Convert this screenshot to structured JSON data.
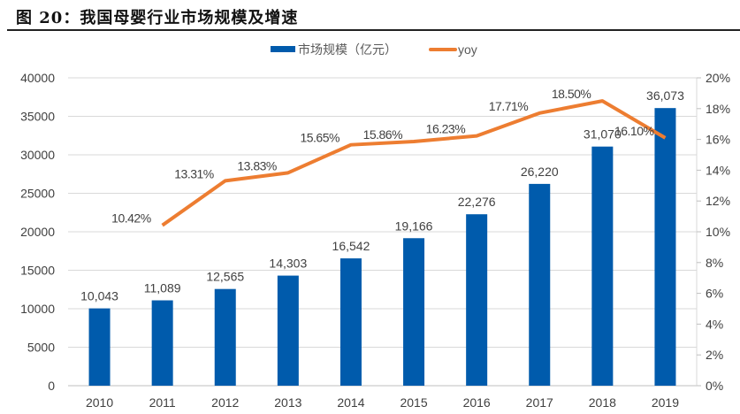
{
  "header": {
    "title": "图 20：我国母婴行业市场规模及增速"
  },
  "chart_data": {
    "type": "bar+line",
    "title": "",
    "categories": [
      "2010",
      "2011",
      "2012",
      "2013",
      "2014",
      "2015",
      "2016",
      "2017",
      "2018",
      "2019"
    ],
    "series": [
      {
        "name": "市场规模（亿元）",
        "type": "bar",
        "axis": "left",
        "color": "#005BAC",
        "values": [
          10043,
          11089,
          12565,
          14303,
          16542,
          19166,
          22276,
          26220,
          31070,
          36073
        ],
        "labels": [
          "10,043",
          "11,089",
          "12,565",
          "14,303",
          "16,542",
          "19,166",
          "22,276",
          "26,220",
          "31,070",
          "36,073"
        ]
      },
      {
        "name": "yoy",
        "type": "line",
        "axis": "right",
        "color": "#ED7D31",
        "values": [
          null,
          10.42,
          13.31,
          13.83,
          15.65,
          15.86,
          16.23,
          17.71,
          18.5,
          16.1
        ],
        "labels": [
          "",
          "10.42%",
          "13.31%",
          "13.83%",
          "15.65%",
          "15.86%",
          "16.23%",
          "17.71%",
          "18.50%",
          "16.10%"
        ]
      }
    ],
    "yleft": {
      "lim": [
        0,
        40000
      ],
      "ticks": [
        "0",
        "5000",
        "10000",
        "15000",
        "20000",
        "25000",
        "30000",
        "35000",
        "40000"
      ]
    },
    "yright": {
      "lim": [
        0,
        20
      ],
      "ticks": [
        "0%",
        "2%",
        "4%",
        "6%",
        "8%",
        "10%",
        "12%",
        "14%",
        "16%",
        "18%",
        "20%"
      ]
    },
    "grid": true,
    "legend": "top"
  }
}
